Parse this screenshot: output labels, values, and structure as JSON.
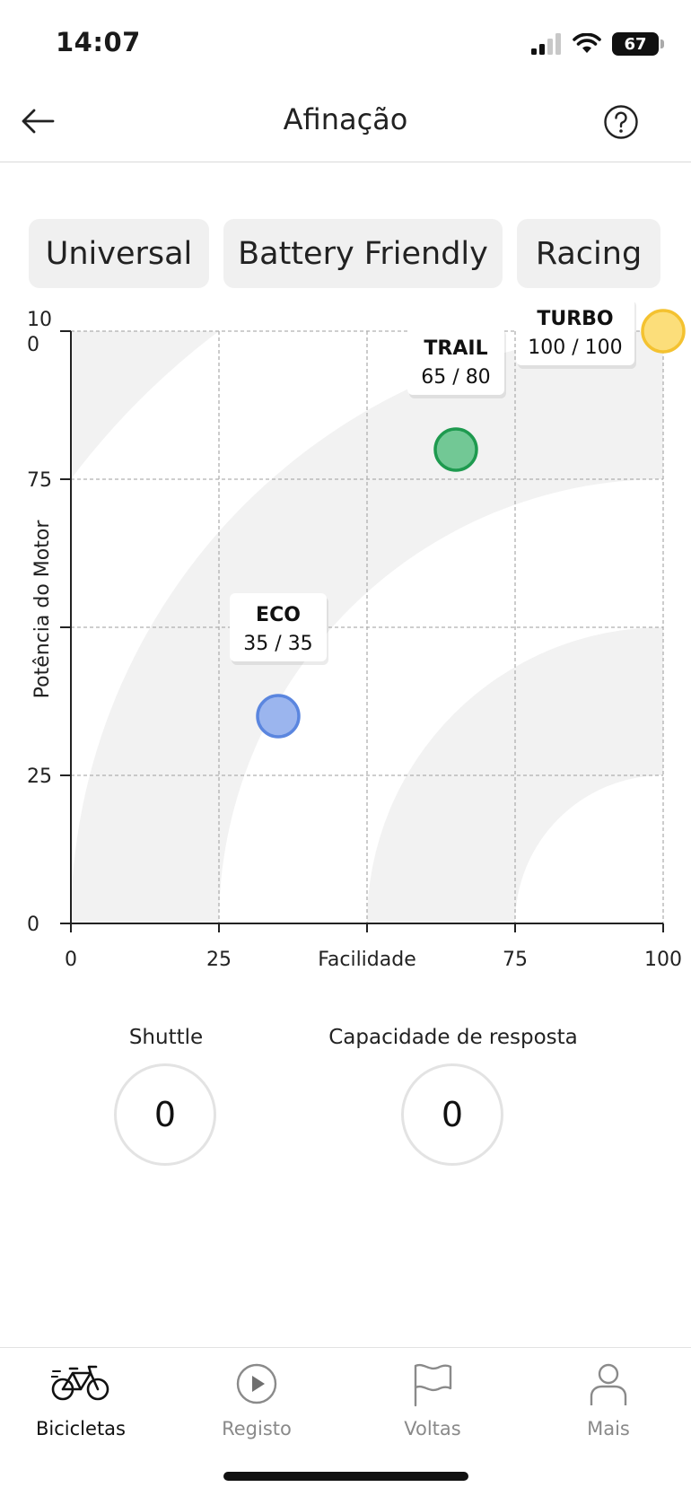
{
  "status_bar": {
    "time": "14:07",
    "battery": "67"
  },
  "header": {
    "title": "Afinação"
  },
  "modes": [
    {
      "label": "Universal"
    },
    {
      "label": "Battery Friendly"
    },
    {
      "label": "Racing"
    }
  ],
  "chart_data": {
    "type": "scatter",
    "xlabel": "Facilidade",
    "ylabel": "Potência do Motor",
    "xlim": [
      0,
      100
    ],
    "ylim": [
      0,
      100
    ],
    "x_ticks": [
      "0",
      "25",
      "50",
      "75",
      "100"
    ],
    "x_tick_labels": [
      "0",
      "25",
      "Facilidade",
      "75",
      "100"
    ],
    "y_ticks": [
      "0",
      "25",
      "50",
      "75",
      "100"
    ],
    "y_tick_labels": [
      "0",
      "25",
      "",
      "75",
      "10\n0"
    ],
    "grid": true,
    "points": [
      {
        "name": "ECO",
        "label": "35 / 35",
        "x": 35,
        "y": 35,
        "color": "#9bb5ee",
        "stroke": "#5b86df"
      },
      {
        "name": "TRAIL",
        "label": "65 / 80",
        "x": 65,
        "y": 80,
        "color": "#72c895",
        "stroke": "#1e9a4f"
      },
      {
        "name": "TURBO",
        "label": "100 / 100",
        "x": 100,
        "y": 100,
        "color": "#fcde7a",
        "stroke": "#f4c230"
      }
    ]
  },
  "dials": [
    {
      "label": "Shuttle",
      "value": "0"
    },
    {
      "label": "Capacidade de resposta",
      "value": "0"
    }
  ],
  "nav": [
    {
      "label": "Bicicletas",
      "icon": "bicycle-icon",
      "active": true
    },
    {
      "label": "Registo",
      "icon": "play-circle-icon",
      "active": false
    },
    {
      "label": "Voltas",
      "icon": "flag-icon",
      "active": false
    },
    {
      "label": "Mais",
      "icon": "person-icon",
      "active": false
    }
  ],
  "colors": {
    "band": "#f2f2f2",
    "grid": "#b0b0b0",
    "axis": "#222222"
  }
}
